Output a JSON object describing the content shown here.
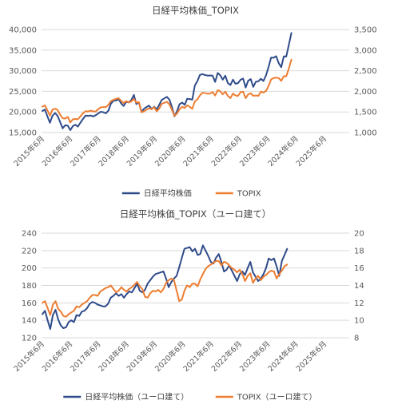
{
  "chart_data": [
    {
      "type": "line",
      "title": "日経平均株価_TOPIX",
      "x_ticks": [
        "2015年6月",
        "2016年6月",
        "2017年6月",
        "2018年6月",
        "2019年6月",
        "2020年6月",
        "2021年6月",
        "2022年6月",
        "2023年6月",
        "2024年6月",
        "2025年6月"
      ],
      "y_left": {
        "min": 15000,
        "max": 40000,
        "step": 5000,
        "tick_labels": [
          "15,000",
          "20,000",
          "25,000",
          "30,000",
          "35,000",
          "40,000"
        ]
      },
      "y_right": {
        "min": 1000,
        "max": 3500,
        "step": 500,
        "tick_labels": [
          "1,000",
          "1,500",
          "2,000",
          "2,500",
          "3,000",
          "3,500"
        ]
      },
      "grid": true,
      "legend_position": "bottom",
      "series": [
        {
          "name": "日経平均株価",
          "axis": "left",
          "color": "#2f4b8a",
          "values": [
            20236,
            20585,
            18890,
            17388,
            19083,
            19747,
            19033,
            17518,
            16027,
            16758,
            16666,
            15576,
            16569,
            16887,
            16450,
            17425,
            18308,
            19114,
            19041,
            19119,
            18909,
            19197,
            19651,
            20033,
            19925,
            19646,
            20356,
            22011,
            22725,
            22765,
            23098,
            22068,
            21454,
            22467,
            22305,
            22865,
            24120,
            21920,
            22305,
            20014,
            20773,
            21205,
            21522,
            20704,
            21276,
            20586,
            21756,
            22927,
            23294,
            23656,
            22977,
            21143,
            18917,
            20194,
            21878,
            22288,
            21710,
            23185,
            23139,
            22977,
            26433,
            27444,
            28966,
            29178,
            28966,
            28813,
            28860,
            28792,
            27284,
            29453,
            28893,
            27822,
            28792,
            27002,
            26527,
            27821,
            26847,
            27000,
            27801,
            28092,
            25937,
            27587,
            27968,
            26094,
            27327,
            27445,
            28041,
            27517,
            28856,
            30888,
            33189,
            33172,
            33533,
            31858,
            30858,
            33487,
            33464,
            36287,
            39166
          ]
        },
        {
          "name": "TOPIX",
          "axis": "right",
          "color": "#ed7d31",
          "values": [
            1630,
            1659,
            1537,
            1411,
            1558,
            1580,
            1547,
            1432,
            1347,
            1340,
            1379,
            1245,
            1322,
            1329,
            1322,
            1393,
            1469,
            1518,
            1512,
            1531,
            1513,
            1512,
            1568,
            1611,
            1618,
            1619,
            1675,
            1765,
            1793,
            1817,
            1836,
            1768,
            1716,
            1764,
            1731,
            1753,
            1817,
            1727,
            1736,
            1494,
            1512,
            1558,
            1585,
            1567,
            1617,
            1513,
            1585,
            1698,
            1721,
            1747,
            1684,
            1547,
            1403,
            1464,
            1564,
            1625,
            1597,
            1660,
            1625,
            1578,
            1754,
            1804,
            1899,
            1968,
            1955,
            1943,
            1943,
            1980,
            1898,
            2030,
            2002,
            1928,
            1992,
            1890,
            1835,
            1946,
            1900,
            1889,
            1979,
            1992,
            1835,
            1926,
            1952,
            1891,
            1899,
            1891,
            1993,
            1970,
            2008,
            2130,
            2288,
            2322,
            2332,
            2323,
            2253,
            2366,
            2366,
            2553,
            2768
          ]
        }
      ]
    },
    {
      "type": "line",
      "title": "日経平均株価_TOPIX（ユーロ建て）",
      "x_ticks": [
        "2015年6月",
        "2016年6月",
        "2017年6月",
        "2018年6月",
        "2019年6月",
        "2020年6月",
        "2021年6月",
        "2022年6月",
        "2023年6月",
        "2024年6月",
        "2025年6月"
      ],
      "y_left": {
        "min": 120,
        "max": 240,
        "step": 20,
        "tick_labels": [
          "120",
          "140",
          "160",
          "180",
          "200",
          "220",
          "240"
        ]
      },
      "y_right": {
        "min": 8,
        "max": 20,
        "step": 2,
        "tick_labels": [
          "8",
          "10",
          "12",
          "14",
          "16",
          "18",
          "20"
        ]
      },
      "grid": true,
      "legend_position": "bottom",
      "series": [
        {
          "name": "日経平均株価（ユーロ建て）",
          "axis": "left",
          "color": "#2f4b8a",
          "values": [
            147,
            151,
            140,
            130,
            146,
            152,
            141,
            134,
            131,
            132,
            138,
            140,
            138,
            146,
            145,
            150,
            151,
            154,
            159,
            161,
            160,
            158,
            157,
            156,
            156,
            159,
            166,
            168,
            171,
            168,
            170,
            166,
            170,
            173,
            172,
            177,
            182,
            174,
            172,
            175,
            182,
            186,
            190,
            193,
            194,
            195,
            196,
            188,
            178,
            184,
            188,
            191,
            201,
            212,
            222,
            223,
            224,
            219,
            222,
            215,
            216,
            226,
            220,
            214,
            207,
            205,
            212,
            216,
            207,
            196,
            198,
            203,
            197,
            191,
            185,
            193,
            196,
            192,
            200,
            207,
            195,
            190,
            185,
            188,
            193,
            200,
            211,
            209,
            211,
            202,
            191,
            208,
            215,
            222
          ]
        },
        {
          "name": "TOPIX（ユーロ建て）",
          "axis": "right",
          "color": "#ed7d31",
          "values": [
            12.0,
            12.2,
            11.4,
            10.6,
            11.8,
            12.2,
            11.3,
            11.0,
            10.5,
            10.4,
            10.7,
            10.9,
            11.1,
            11.6,
            11.5,
            11.8,
            12.0,
            12.2,
            12.6,
            12.9,
            12.9,
            12.8,
            13.3,
            13.5,
            13.7,
            13.8,
            14.0,
            13.6,
            13.2,
            13.4,
            13.8,
            13.5,
            13.3,
            13.6,
            13.8,
            14.1,
            14.4,
            13.9,
            13.6,
            12.7,
            12.6,
            13.1,
            13.4,
            13.3,
            13.5,
            13.2,
            13.6,
            14.3,
            14.6,
            14.8,
            14.6,
            13.4,
            12.2,
            12.4,
            13.4,
            14.0,
            13.8,
            14.2,
            14.2,
            13.9,
            14.7,
            15.3,
            15.9,
            16.2,
            16.4,
            16.6,
            16.8,
            16.8,
            16.3,
            16.7,
            16.6,
            16.3,
            16.0,
            15.8,
            15.5,
            15.8,
            15.3,
            14.5,
            15.1,
            15.4,
            14.3,
            14.8,
            15.1,
            14.6,
            15.0,
            15.2,
            15.5,
            15.7,
            15.6,
            14.8,
            15.3,
            15.7,
            16.2,
            16.4
          ]
        }
      ]
    }
  ]
}
